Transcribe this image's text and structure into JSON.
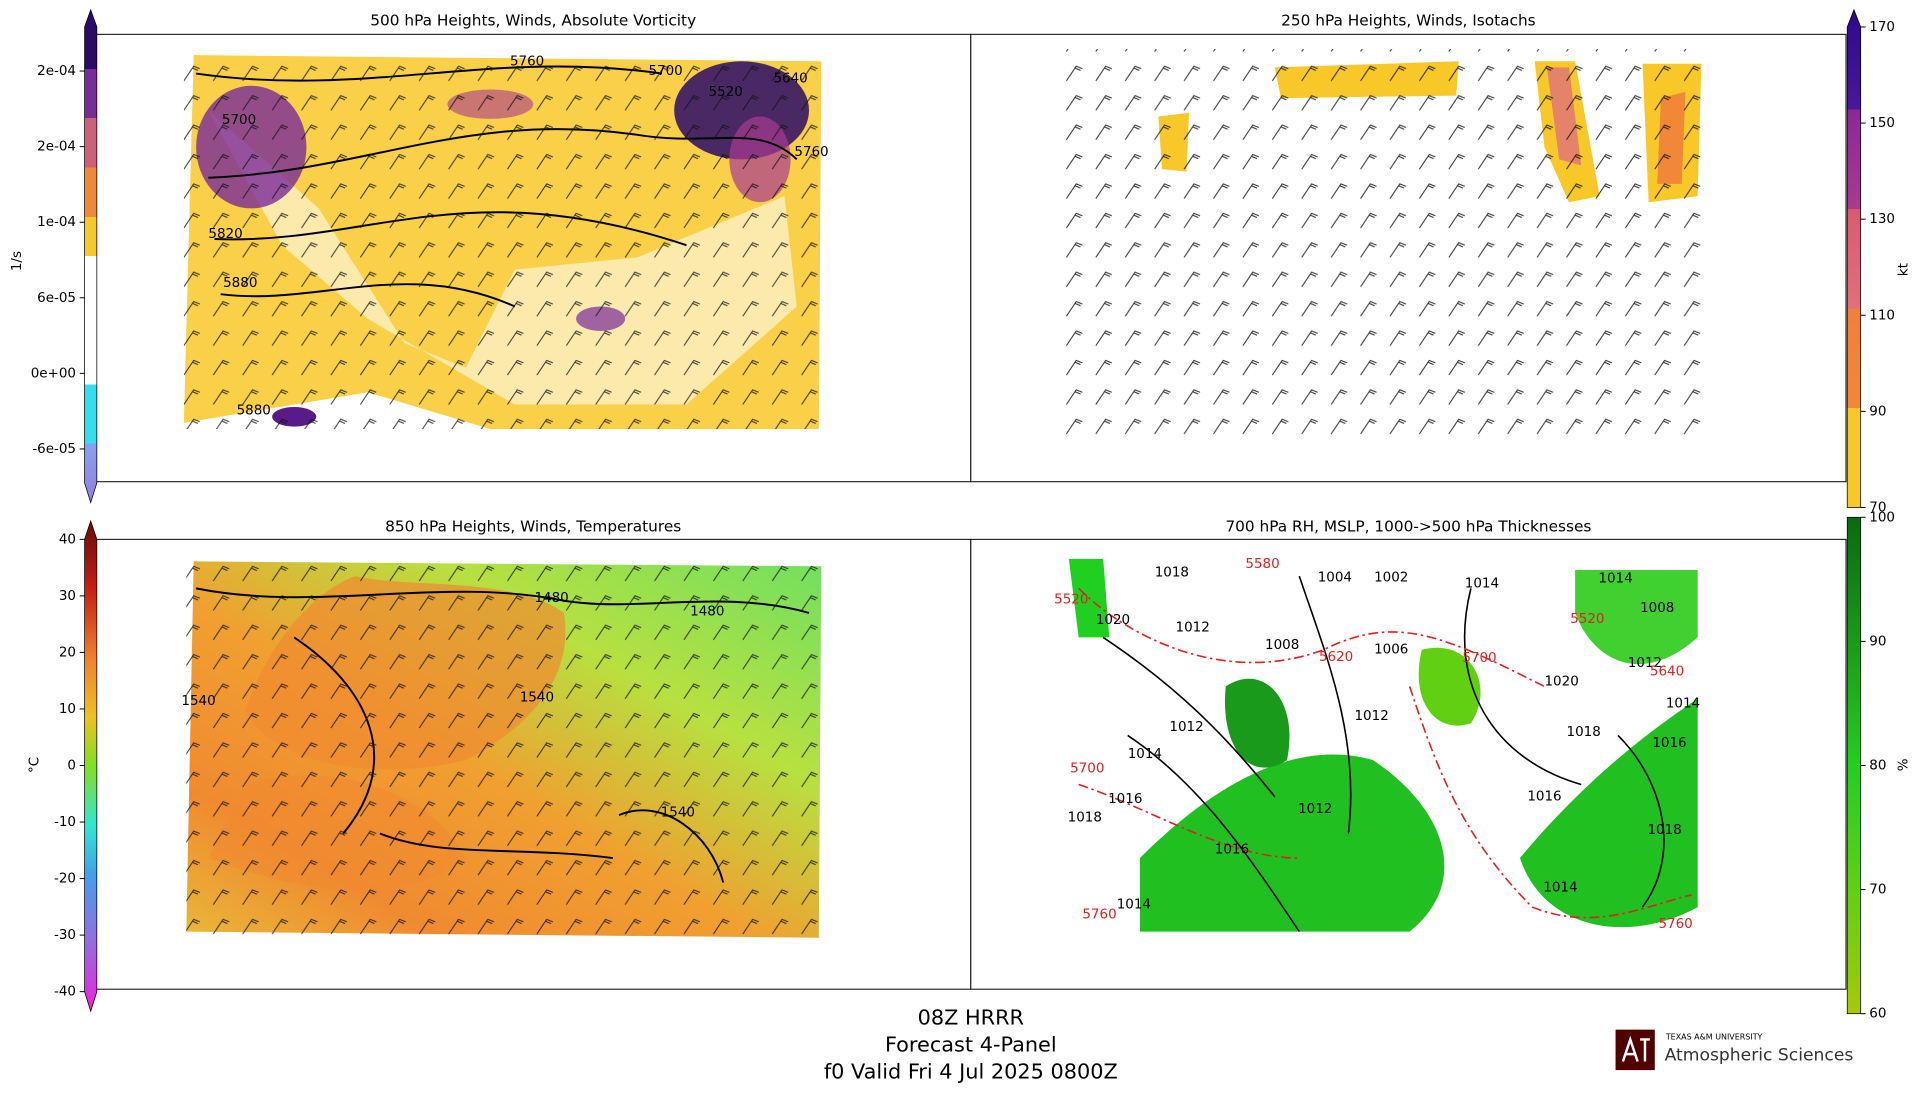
{
  "panels": [
    {
      "title": "500 hPa Heights, Winds, Absolute Vorticity",
      "contour_labels": [
        {
          "text": "5760",
          "color": "black"
        },
        {
          "text": "5700",
          "color": "black"
        },
        {
          "text": "5520",
          "color": "black"
        },
        {
          "text": "5640",
          "color": "black"
        },
        {
          "text": "5700",
          "color": "black"
        },
        {
          "text": "5760",
          "color": "black"
        },
        {
          "text": "5820",
          "color": "black"
        },
        {
          "text": "5880",
          "color": "black"
        },
        {
          "text": "5880",
          "color": "black"
        }
      ]
    },
    {
      "title": "250 hPa Heights, Winds, Isotachs",
      "contour_labels": []
    },
    {
      "title": "850 hPa Heights, Winds, Temperatures",
      "contour_labels": [
        {
          "text": "1480",
          "color": "black"
        },
        {
          "text": "1480",
          "color": "black"
        },
        {
          "text": "1540",
          "color": "black"
        },
        {
          "text": "1540",
          "color": "black"
        },
        {
          "text": "1540",
          "color": "black"
        }
      ]
    },
    {
      "title": "700 hPa RH, MSLP, 1000->500 hPa Thicknesses",
      "contour_labels": [
        {
          "text": "1018",
          "color": "black"
        },
        {
          "text": "1004",
          "color": "black"
        },
        {
          "text": "1002",
          "color": "black"
        },
        {
          "text": "1014",
          "color": "black"
        },
        {
          "text": "1014",
          "color": "black"
        },
        {
          "text": "1008",
          "color": "black"
        },
        {
          "text": "1020",
          "color": "black"
        },
        {
          "text": "1012",
          "color": "black"
        },
        {
          "text": "1008",
          "color": "black"
        },
        {
          "text": "1006",
          "color": "black"
        },
        {
          "text": "1012",
          "color": "black"
        },
        {
          "text": "1020",
          "color": "black"
        },
        {
          "text": "1014",
          "color": "black"
        },
        {
          "text": "1012",
          "color": "black"
        },
        {
          "text": "1016",
          "color": "black"
        },
        {
          "text": "1018",
          "color": "black"
        },
        {
          "text": "1012",
          "color": "black"
        },
        {
          "text": "1014",
          "color": "black"
        },
        {
          "text": "1016",
          "color": "black"
        },
        {
          "text": "1016",
          "color": "black"
        },
        {
          "text": "1018",
          "color": "black"
        },
        {
          "text": "1012",
          "color": "black"
        },
        {
          "text": "1018",
          "color": "black"
        },
        {
          "text": "1016",
          "color": "black"
        },
        {
          "text": "1014",
          "color": "black"
        },
        {
          "text": "1014",
          "color": "black"
        },
        {
          "text": "5580",
          "color": "red"
        },
        {
          "text": "5520",
          "color": "red"
        },
        {
          "text": "5520",
          "color": "red"
        },
        {
          "text": "5640",
          "color": "red"
        },
        {
          "text": "5700",
          "color": "red"
        },
        {
          "text": "5620",
          "color": "red"
        },
        {
          "text": "5700",
          "color": "red"
        },
        {
          "text": "5760",
          "color": "red"
        },
        {
          "text": "5760",
          "color": "red"
        }
      ]
    }
  ],
  "colorbars": [
    {
      "label": "1/s",
      "lim": [
        -8.7e-05,
        0.000275
      ],
      "ticks": [
        {
          "value": 0.00024,
          "label": "2e-04"
        },
        {
          "value": 0.00018,
          "label": "2e-04"
        },
        {
          "value": 0.00012,
          "label": "1e-04"
        },
        {
          "value": 6e-05,
          "label": "6e-05"
        },
        {
          "value": 0,
          "label": "0e+00"
        },
        {
          "value": -6e-05,
          "label": "-6e-05"
        }
      ]
    },
    {
      "label": "kt",
      "lim": [
        70,
        170
      ],
      "ticks": [
        170,
        150,
        130,
        110,
        90,
        70
      ]
    },
    {
      "label": "°C",
      "lim": [
        -40,
        40
      ],
      "ticks": [
        40,
        30,
        20,
        10,
        0,
        -10,
        -20,
        -30,
        -40
      ]
    },
    {
      "label": "%",
      "lim": [
        60,
        100
      ],
      "ticks": [
        100,
        90,
        80,
        70,
        60
      ]
    }
  ],
  "footer": {
    "lines": [
      "08Z HRRR",
      "Forecast 4-Panel",
      "f0 Valid Fri 4 Jul 2025 0800Z"
    ]
  },
  "logo": {
    "university": "TEXAS A&M UNIVERSITY",
    "department": "Atmospheric Sciences"
  }
}
